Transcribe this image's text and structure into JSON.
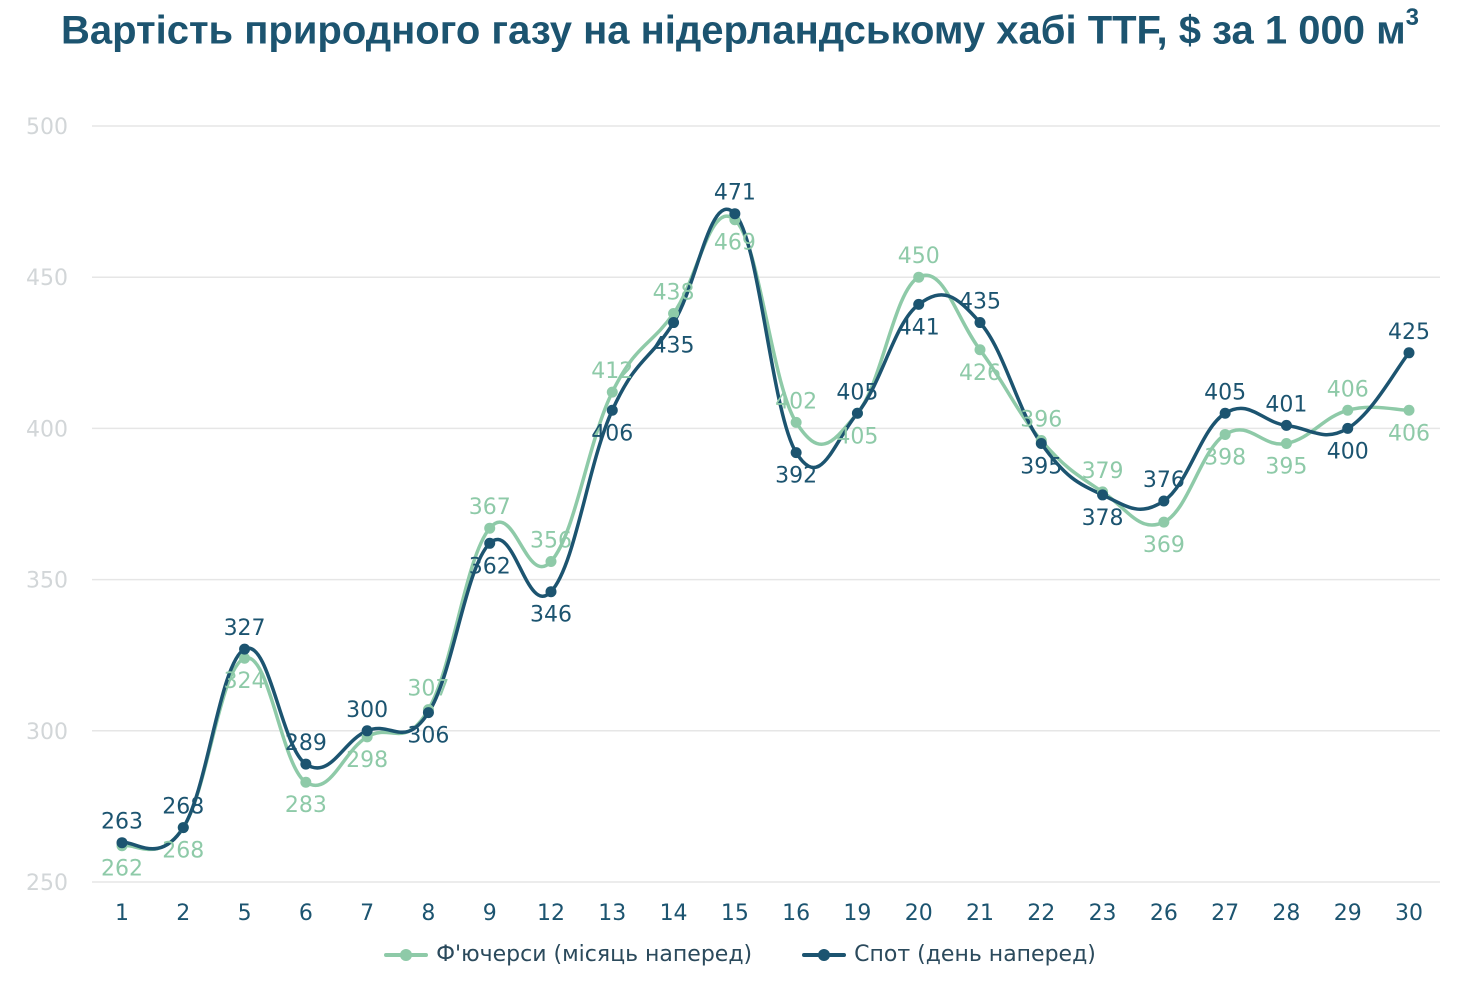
{
  "chart_data": {
    "type": "line",
    "title": "Вартість природного газу на нідерландському хабі TTF, $ за 1 000 м",
    "title_superscript": "3",
    "categories": [
      "1",
      "2",
      "5",
      "6",
      "7",
      "8",
      "9",
      "12",
      "13",
      "14",
      "15",
      "16",
      "19",
      "20",
      "21",
      "22",
      "23",
      "26",
      "27",
      "28",
      "29",
      "30"
    ],
    "ylim": [
      250,
      500
    ],
    "yticks": [
      250,
      300,
      350,
      400,
      450,
      500
    ],
    "grid": true,
    "legend_position": "bottom",
    "series": [
      {
        "name": "Ф'ючерси (місяць наперед)",
        "color": "#8ecaa8",
        "values": [
          262,
          268,
          324,
          283,
          298,
          307,
          367,
          356,
          412,
          438,
          469,
          402,
          405,
          450,
          426,
          396,
          379,
          369,
          398,
          395,
          406,
          406
        ]
      },
      {
        "name": "Спот (день наперед)",
        "color": "#1c5470",
        "values": [
          263,
          268,
          327,
          289,
          300,
          306,
          362,
          346,
          406,
          435,
          471,
          392,
          405,
          441,
          435,
          395,
          378,
          376,
          405,
          401,
          400,
          425
        ]
      }
    ]
  }
}
